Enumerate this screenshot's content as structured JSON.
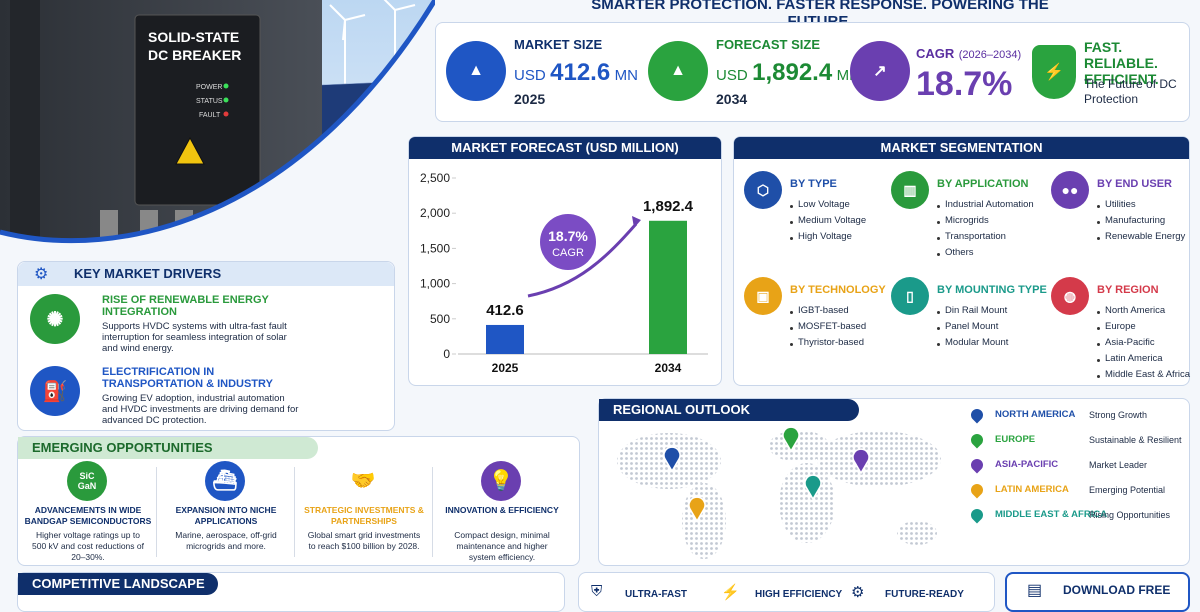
{
  "tagline": "SMARTER PROTECTION. FASTER RESPONSE. POWERING THE FUTURE.",
  "hero": {
    "device_label": [
      "SOLID-STATE",
      "DC BREAKER"
    ],
    "indicators": [
      "POWER",
      "STATUS",
      "FAULT"
    ]
  },
  "market_size": {
    "title": "MARKET SIZE",
    "currency": "USD",
    "value": "412.6",
    "unit": "MN",
    "year": "2025"
  },
  "forecast_size": {
    "title": "FORECAST SIZE",
    "currency": "USD",
    "value": "1,892.4",
    "unit": "MN",
    "year": "2034"
  },
  "cagr": {
    "title": "CAGR",
    "period": "(2026–2034)",
    "value": "18.7%"
  },
  "promise": {
    "title": "FAST. RELIABLE. EFFICIENT.",
    "text": "The Future of DC Protection"
  },
  "chart_data": {
    "type": "bar",
    "title": "MARKET FORECAST (USD MILLION)",
    "categories": [
      "2025",
      "2034"
    ],
    "values": [
      412.6,
      1892.4
    ],
    "value_labels": [
      "412.6",
      "1,892.4"
    ],
    "colors": [
      "#1f56c4",
      "#2aa33f"
    ],
    "ylim": [
      0,
      2500
    ],
    "yticks": [
      0,
      500,
      {
        "value": 1000,
        "label": "1,000"
      },
      {
        "value": 1500,
        "label": "1,500"
      },
      {
        "value": 2000,
        "label": "2,000"
      },
      {
        "value": 2500,
        "label": "2,500"
      }
    ],
    "annotation": {
      "value": "18.7%",
      "label": "CAGR"
    }
  },
  "segmentation": {
    "title": "MARKET SEGMENTATION",
    "groups": [
      {
        "title": "BY TYPE",
        "items": [
          "Low Voltage",
          "Medium Voltage",
          "High Voltage"
        ]
      },
      {
        "title": "BY APPLICATION",
        "items": [
          "Industrial Automation",
          "Microgrids",
          "Transportation",
          "Others"
        ]
      },
      {
        "title": "BY END USER",
        "items": [
          "Utilities",
          "Manufacturing",
          "Renewable Energy"
        ]
      },
      {
        "title": "BY TECHNOLOGY",
        "items": [
          "IGBT-based",
          "MOSFET-based",
          "Thyristor-based"
        ]
      },
      {
        "title": "BY MOUNTING TYPE",
        "items": [
          "Din Rail Mount",
          "Panel Mount",
          "Modular Mount"
        ]
      },
      {
        "title": "BY REGION",
        "items": [
          "North America",
          "Europe",
          "Asia-Pacific",
          "Latin America",
          "Middle East & Africa"
        ]
      }
    ]
  },
  "drivers": {
    "title": "KEY MARKET DRIVERS",
    "items": [
      {
        "title": "RISE OF RENEWABLE ENERGY INTEGRATION",
        "text": "Supports HVDC systems with ultra-fast fault interruption for seamless integration of solar and wind energy."
      },
      {
        "title": "ELECTRIFICATION IN TRANSPORTATION & INDUSTRY",
        "text": "Growing EV adoption, industrial automation and HVDC investments are driving demand for advanced DC protection."
      }
    ]
  },
  "opportunities": {
    "title": "EMERGING OPPORTUNITIES",
    "items": [
      {
        "title": "ADVANCEMENTS IN WIDE BANDGAP SEMICONDUCTORS",
        "text": "Higher voltage ratings up to 500 kV and cost reductions of 20–30%.",
        "icon_text": [
          "SiC",
          "GaN"
        ]
      },
      {
        "title": "EXPANSION INTO NICHE APPLICATIONS",
        "text": "Marine, aerospace, off-grid microgrids and more."
      },
      {
        "title": "STRATEGIC INVESTMENTS & PARTNERSHIPS",
        "text": "Global smart grid investments to reach $100 billion by 2028."
      },
      {
        "title": "INNOVATION & EFFICIENCY",
        "text": "Compact design, minimal maintenance and higher system efficiency."
      }
    ]
  },
  "regional": {
    "title": "REGIONAL OUTLOOK",
    "regions": [
      {
        "name": "NORTH AMERICA",
        "outlook": "Strong Growth"
      },
      {
        "name": "EUROPE",
        "outlook": "Sustainable & Resilient"
      },
      {
        "name": "ASIA-PACIFIC",
        "outlook": "Market Leader"
      },
      {
        "name": "LATIN AMERICA",
        "outlook": "Emerging Potential"
      },
      {
        "name": "MIDDLE EAST & AFRICA",
        "outlook": "Rising Opportunities"
      }
    ]
  },
  "competitive": {
    "title": "COMPETITIVE LANDSCAPE"
  },
  "features": [
    "ULTRA-FAST",
    "HIGH EFFICIENCY",
    "FUTURE-READY"
  ],
  "download": {
    "title": "DOWNLOAD FREE"
  }
}
